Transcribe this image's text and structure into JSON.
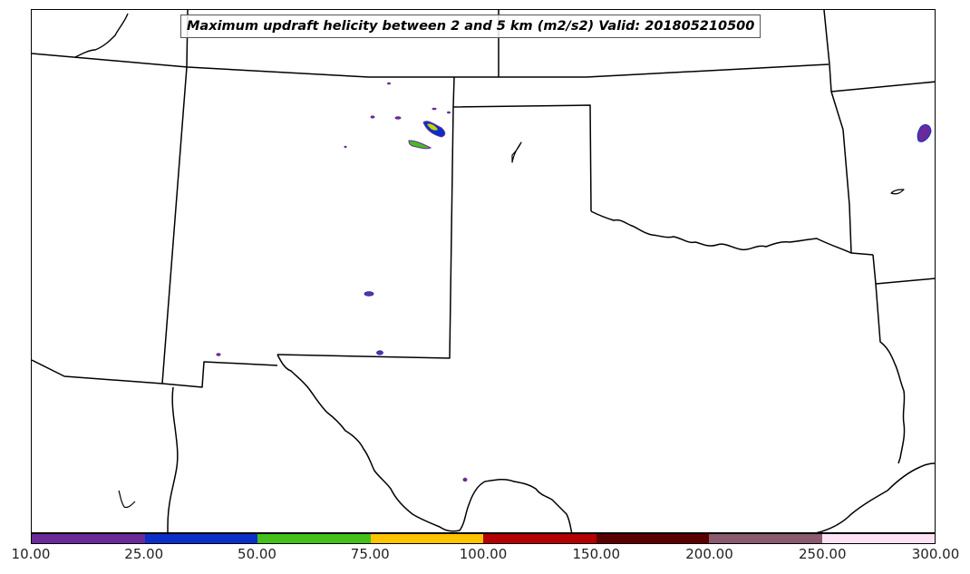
{
  "title": "Maximum updraft helicity between 2 and 5 km (m2/s2) Valid: 201805210500",
  "colorbar": {
    "ticks": [
      "10.00",
      "25.00",
      "50.00",
      "75.00",
      "100.00",
      "150.00",
      "200.00",
      "250.00",
      "300.00"
    ],
    "colors": [
      "#6a2a9a",
      "#0a2fc8",
      "#44c01a",
      "#ffc400",
      "#b40000",
      "#5a0000",
      "#8a5a6e",
      "#fde2f6"
    ]
  }
}
